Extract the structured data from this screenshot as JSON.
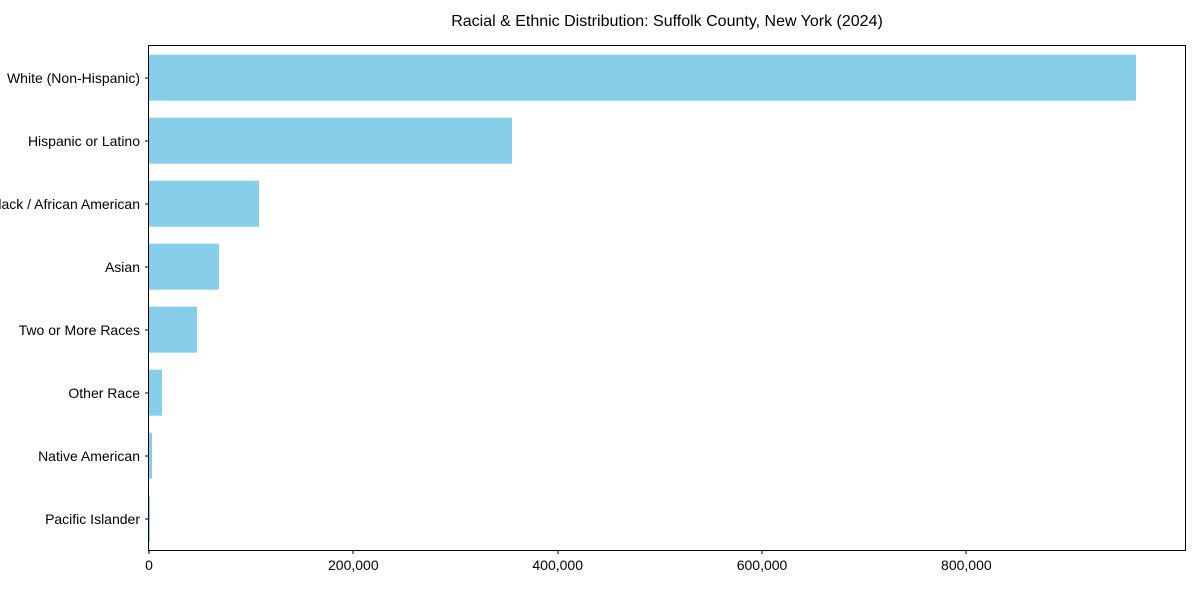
{
  "chart_data": {
    "type": "bar",
    "orientation": "horizontal",
    "title": "Racial & Ethnic Distribution: Suffolk County, New York (2024)",
    "xlabel": "",
    "ylabel": "",
    "categories": [
      "White (Non-Hispanic)",
      "Hispanic or Latino",
      "Black / African American",
      "Asian",
      "Two or More Races",
      "Other Race",
      "Native American",
      "Pacific Islander"
    ],
    "values": [
      966000,
      355000,
      108000,
      69000,
      47000,
      13000,
      3000,
      500
    ],
    "xlim": [
      0,
      1014000
    ],
    "x_ticks": [
      0,
      200000,
      400000,
      600000,
      800000
    ],
    "x_tick_labels": [
      "0",
      "200,000",
      "400,000",
      "600,000",
      "800,000"
    ],
    "bar_color": "#87CEEB",
    "axis_color": "#000000",
    "grid": false,
    "legend": null
  }
}
